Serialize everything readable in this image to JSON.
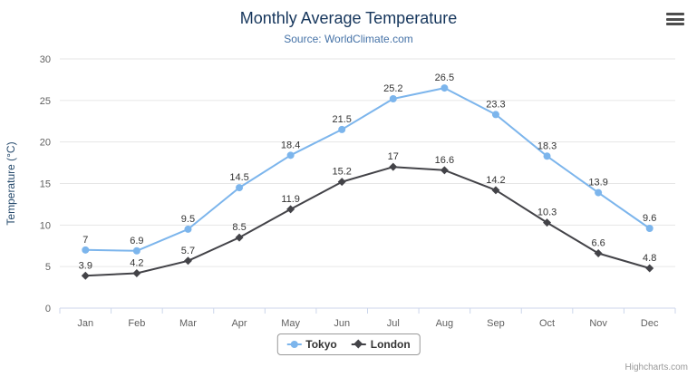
{
  "header": {
    "menu_icon": "hamburger-menu-icon"
  },
  "credits": "Highcharts.com",
  "colors": {
    "title": "#16365c",
    "subtitle": "#4572a7",
    "axis_title": "#274b6d",
    "axis_label": "#606060",
    "grid": "#e6e6e6",
    "axis_line": "#ccd6eb",
    "data_label": "#333333",
    "legend_border": "#999999"
  },
  "chart_data": {
    "type": "line",
    "title": "Monthly Average Temperature",
    "subtitle": "Source: WorldClimate.com",
    "categories": [
      "Jan",
      "Feb",
      "Mar",
      "Apr",
      "May",
      "Jun",
      "Jul",
      "Aug",
      "Sep",
      "Oct",
      "Nov",
      "Dec"
    ],
    "xlabel": "",
    "ylabel": "Temperature (°C)",
    "ylim": [
      0,
      30
    ],
    "yticks": [
      0,
      5,
      10,
      15,
      20,
      25,
      30
    ],
    "grid": true,
    "legend_position": "bottom",
    "series": [
      {
        "name": "Tokyo",
        "color": "#7cb5ec",
        "marker": "circle",
        "values": [
          7,
          6.9,
          9.5,
          14.5,
          18.4,
          21.5,
          25.2,
          26.5,
          23.3,
          18.3,
          13.9,
          9.6
        ]
      },
      {
        "name": "London",
        "color": "#434348",
        "marker": "diamond",
        "values": [
          3.9,
          4.2,
          5.7,
          8.5,
          11.9,
          15.2,
          17,
          16.6,
          14.2,
          10.3,
          6.6,
          4.8
        ]
      }
    ]
  }
}
